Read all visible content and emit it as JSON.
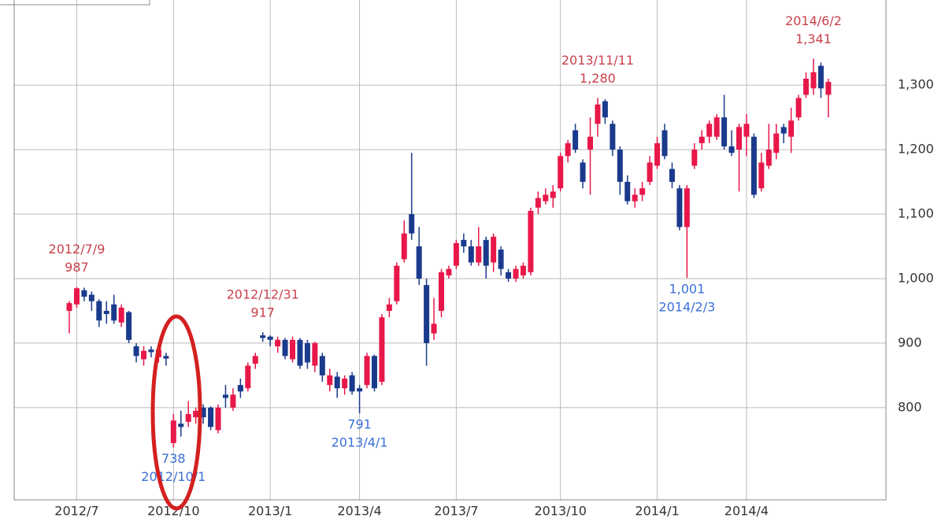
{
  "chart_data": {
    "type": "candlestick",
    "categories": [
      null,
      "2012/7",
      null,
      null,
      null,
      null,
      null,
      null,
      null,
      null,
      null,
      null,
      null,
      null,
      "2012/10",
      null,
      null,
      null,
      null,
      null,
      null,
      null,
      null,
      null,
      null,
      null,
      null,
      "2013/1",
      null,
      null,
      null,
      null,
      null,
      null,
      null,
      null,
      null,
      null,
      null,
      "2013/4",
      null,
      null,
      null,
      null,
      null,
      null,
      null,
      null,
      null,
      null,
      null,
      null,
      "2013/7",
      null,
      null,
      null,
      null,
      null,
      null,
      null,
      null,
      null,
      null,
      null,
      null,
      null,
      "2013/10",
      null,
      null,
      null,
      null,
      null,
      null,
      null,
      null,
      null,
      null,
      null,
      null,
      "2014/1",
      null,
      null,
      null,
      null,
      null,
      null,
      null,
      null,
      null,
      null,
      null,
      "2014/4",
      null,
      null,
      null,
      null,
      null,
      null,
      null,
      null,
      null,
      null,
      null
    ],
    "open": [
      950,
      960,
      982,
      975,
      965,
      950,
      960,
      932,
      948,
      895,
      875,
      890,
      878,
      880,
      745,
      775,
      778,
      785,
      800,
      800,
      765,
      820,
      800,
      835,
      830,
      868,
      912,
      910,
      895,
      905,
      875,
      905,
      900,
      865,
      880,
      835,
      848,
      830,
      850,
      830,
      835,
      880,
      840,
      950,
      965,
      1030,
      1100,
      1050,
      990,
      915,
      950,
      1005,
      1020,
      1060,
      1050,
      1025,
      1060,
      1025,
      1045,
      1010,
      1000,
      1005,
      1010,
      1110,
      1120,
      1125,
      1140,
      1190,
      1230,
      1180,
      1200,
      1240,
      1275,
      1240,
      1200,
      1150,
      1120,
      1130,
      1150,
      1175,
      1230,
      1170,
      1140,
      1080,
      1175,
      1210,
      1220,
      1220,
      1250,
      1205,
      1200,
      1220,
      1220,
      1140,
      1175,
      1195,
      1235,
      1220,
      1250,
      1285,
      1295,
      1330,
      1285
    ],
    "high": [
      965,
      987,
      986,
      980,
      968,
      965,
      975,
      960,
      950,
      900,
      895,
      895,
      898,
      885,
      790,
      795,
      810,
      800,
      805,
      802,
      805,
      835,
      830,
      845,
      870,
      885,
      917,
      912,
      910,
      908,
      910,
      908,
      905,
      902,
      885,
      860,
      855,
      850,
      855,
      835,
      885,
      882,
      945,
      970,
      1025,
      1090,
      1195,
      1080,
      1000,
      970,
      1015,
      1020,
      1060,
      1070,
      1060,
      1080,
      1065,
      1070,
      1050,
      1015,
      1020,
      1025,
      1110,
      1135,
      1140,
      1145,
      1195,
      1215,
      1240,
      1185,
      1250,
      1280,
      1278,
      1245,
      1205,
      1160,
      1140,
      1150,
      1190,
      1220,
      1240,
      1180,
      1145,
      1145,
      1210,
      1230,
      1245,
      1255,
      1285,
      1230,
      1240,
      1255,
      1225,
      1195,
      1240,
      1240,
      1240,
      1265,
      1285,
      1320,
      1341,
      1335,
      1310
    ],
    "low": [
      915,
      955,
      965,
      950,
      925,
      930,
      930,
      925,
      900,
      870,
      865,
      878,
      870,
      865,
      738,
      755,
      770,
      775,
      775,
      765,
      760,
      800,
      795,
      815,
      825,
      860,
      902,
      895,
      885,
      875,
      870,
      860,
      860,
      855,
      840,
      825,
      815,
      820,
      820,
      791,
      830,
      825,
      835,
      940,
      960,
      1025,
      1060,
      990,
      865,
      905,
      940,
      1000,
      1015,
      1040,
      1020,
      1020,
      1000,
      1010,
      1005,
      995,
      995,
      1000,
      1005,
      1100,
      1115,
      1110,
      1135,
      1180,
      1195,
      1140,
      1130,
      1220,
      1240,
      1190,
      1130,
      1115,
      1110,
      1120,
      1145,
      1170,
      1185,
      1140,
      1075,
      1001,
      1170,
      1200,
      1210,
      1215,
      1200,
      1190,
      1135,
      1190,
      1125,
      1135,
      1170,
      1185,
      1210,
      1195,
      1245,
      1280,
      1285,
      1280,
      1250
    ],
    "close": [
      962,
      985,
      972,
      965,
      935,
      945,
      935,
      955,
      905,
      880,
      888,
      886,
      890,
      876,
      780,
      770,
      790,
      795,
      785,
      770,
      800,
      815,
      820,
      825,
      865,
      880,
      908,
      905,
      905,
      880,
      905,
      865,
      870,
      900,
      850,
      850,
      830,
      845,
      825,
      825,
      880,
      830,
      940,
      960,
      1020,
      1070,
      1070,
      1000,
      900,
      930,
      1010,
      1015,
      1055,
      1050,
      1025,
      1050,
      1020,
      1065,
      1015,
      1000,
      1015,
      1020,
      1105,
      1125,
      1130,
      1135,
      1190,
      1210,
      1200,
      1150,
      1220,
      1270,
      1250,
      1200,
      1150,
      1120,
      1130,
      1140,
      1180,
      1210,
      1190,
      1150,
      1080,
      1140,
      1200,
      1220,
      1240,
      1250,
      1205,
      1195,
      1235,
      1240,
      1130,
      1180,
      1200,
      1225,
      1225,
      1245,
      1280,
      1310,
      1320,
      1295,
      1305
    ],
    "up_color": "#e8174a",
    "down_color": "#1a3a8c",
    "ylim": [
      657,
      1432
    ],
    "yticks": [
      800,
      900,
      {
        "value": 1000,
        "label": "1,000"
      },
      {
        "value": 1100,
        "label": "1,100"
      },
      {
        "value": 1200,
        "label": "1,200"
      },
      {
        "value": 1300,
        "label": "1,300"
      }
    ],
    "grid": true,
    "annotations": [
      {
        "date": "2012/7/9",
        "value": 987,
        "value_label": "987",
        "kind": "high"
      },
      {
        "date": "2012/10/1",
        "value": 738,
        "value_label": "738",
        "kind": "low"
      },
      {
        "date": "2012/12/31",
        "value": 917,
        "value_label": "917",
        "kind": "high"
      },
      {
        "date": "2013/4/1",
        "value": 791,
        "value_label": "791",
        "kind": "low"
      },
      {
        "date": "2013/11/11",
        "value": 1280,
        "value_label": "1,280",
        "kind": "high"
      },
      {
        "date": "2014/2/3",
        "value": 1001,
        "value_label": "1,001",
        "kind": "low"
      },
      {
        "date": "2014/6/2",
        "value": 1341,
        "value_label": "1,341",
        "kind": "high"
      }
    ]
  }
}
